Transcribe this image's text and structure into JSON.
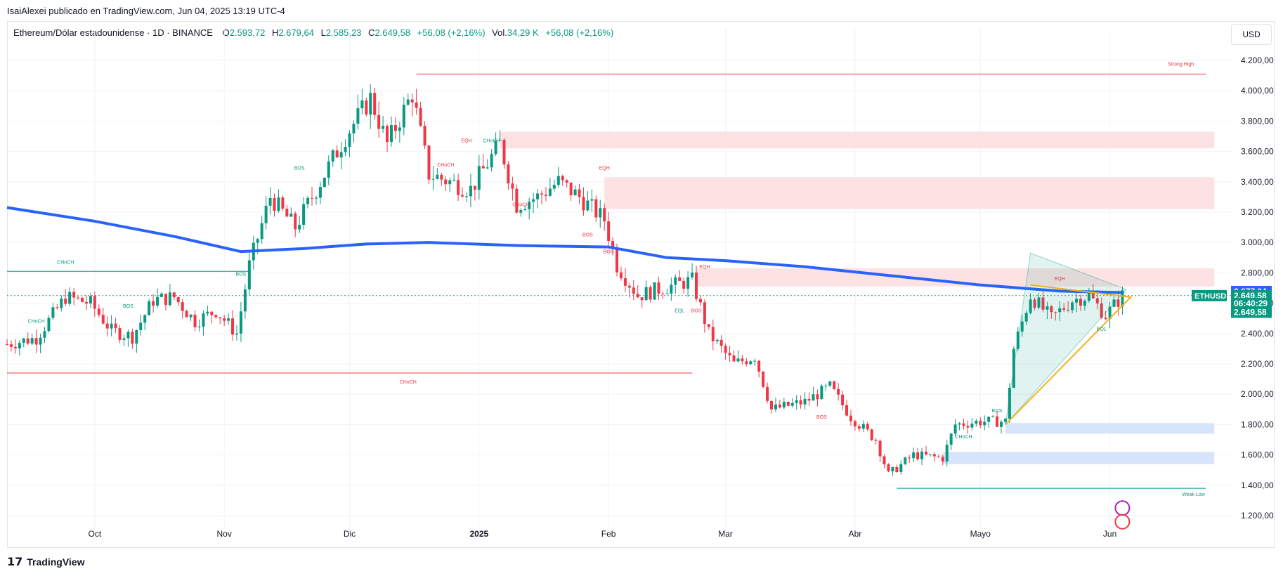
{
  "header": {
    "author_line": "IsaiAlexei publicado en TradingView.com, Jun 04, 2025 13:19 UTC-4"
  },
  "legend": {
    "symbol": "Ethereum/Dólar estadounidense · 1D · BINANCE",
    "open_label": "O",
    "open": "2.593,72",
    "high_label": "H",
    "high": "2.679,64",
    "low_label": "L",
    "low": "2.585,23",
    "close_label": "C",
    "close": "2.649,58",
    "change": "+56,08 (+2,16%)",
    "vol_label": "Vol.",
    "vol": "34,29 K",
    "vol_change": "+56,08 (+2,16%)"
  },
  "currency": "USD",
  "footer": {
    "brand": "TradingView"
  },
  "colors": {
    "up": "#089981",
    "down": "#f23645",
    "ma": "#2962ff",
    "supply_zone": "#fde2e4",
    "demand_zone": "#d6e4fc",
    "grid": "#f0f3fa"
  },
  "chart_data": {
    "type": "candlestick",
    "symbol": "ETHUSD",
    "timeframe": "1D",
    "x_range": [
      "2024-09-10",
      "2025-06-30"
    ],
    "ylim": [
      1080,
      4320
    ],
    "y_ticks": [
      "1.200,00",
      "1.400,00",
      "1.600,00",
      "1.800,00",
      "2.000,00",
      "2.200,00",
      "2.400,00",
      "2.600,00",
      "2.800,00",
      "3.000,00",
      "3.200,00",
      "3.400,00",
      "3.600,00",
      "3.800,00",
      "4.000,00",
      "4.200,00"
    ],
    "y_tick_values": [
      1200,
      1400,
      1600,
      1800,
      2000,
      2200,
      2400,
      2600,
      2800,
      3000,
      3200,
      3400,
      3600,
      3800,
      4000,
      4200
    ],
    "x_ticks": [
      {
        "date": "2024-10-01",
        "label": "Oct"
      },
      {
        "date": "2024-11-01",
        "label": "Nov"
      },
      {
        "date": "2024-12-01",
        "label": "Dic"
      },
      {
        "date": "2025-01-01",
        "label": "2025"
      },
      {
        "date": "2025-02-01",
        "label": "Feb"
      },
      {
        "date": "2025-03-01",
        "label": "Mar"
      },
      {
        "date": "2025-04-01",
        "label": "Abr"
      },
      {
        "date": "2025-05-01",
        "label": "Mayo"
      },
      {
        "date": "2025-06-01",
        "label": "Jun"
      }
    ],
    "close_path": [
      [
        "2024-09-10",
        2330
      ],
      [
        "2024-09-17",
        2370
      ],
      [
        "2024-09-24",
        2640
      ],
      [
        "2024-09-30",
        2600
      ],
      [
        "2024-10-05",
        2420
      ],
      [
        "2024-10-10",
        2380
      ],
      [
        "2024-10-15",
        2620
      ],
      [
        "2024-10-20",
        2640
      ],
      [
        "2024-10-25",
        2480
      ],
      [
        "2024-10-30",
        2550
      ],
      [
        "2024-11-04",
        2400
      ],
      [
        "2024-11-07",
        2850
      ],
      [
        "2024-11-12",
        3300
      ],
      [
        "2024-11-18",
        3100
      ],
      [
        "2024-11-24",
        3400
      ],
      [
        "2024-11-30",
        3700
      ],
      [
        "2024-12-06",
        3950
      ],
      [
        "2024-12-10",
        3650
      ],
      [
        "2024-12-16",
        3980
      ],
      [
        "2024-12-20",
        3450
      ],
      [
        "2024-12-25",
        3400
      ],
      [
        "2024-12-30",
        3350
      ],
      [
        "2025-01-06",
        3650
      ],
      [
        "2025-01-10",
        3250
      ],
      [
        "2025-01-15",
        3300
      ],
      [
        "2025-01-20",
        3400
      ],
      [
        "2025-01-25",
        3300
      ],
      [
        "2025-01-31",
        3150
      ],
      [
        "2025-02-03",
        2850
      ],
      [
        "2025-02-08",
        2650
      ],
      [
        "2025-02-14",
        2700
      ],
      [
        "2025-02-21",
        2750
      ],
      [
        "2025-02-25",
        2400
      ],
      [
        "2025-03-03",
        2200
      ],
      [
        "2025-03-08",
        2250
      ],
      [
        "2025-03-12",
        1900
      ],
      [
        "2025-03-20",
        1950
      ],
      [
        "2025-03-26",
        2050
      ],
      [
        "2025-03-31",
        1850
      ],
      [
        "2025-04-06",
        1700
      ],
      [
        "2025-04-09",
        1470
      ],
      [
        "2025-04-15",
        1600
      ],
      [
        "2025-04-22",
        1580
      ],
      [
        "2025-04-25",
        1800
      ],
      [
        "2025-05-01",
        1820
      ],
      [
        "2025-05-07",
        1820
      ],
      [
        "2025-05-09",
        2300
      ],
      [
        "2025-05-13",
        2650
      ],
      [
        "2025-05-18",
        2500
      ],
      [
        "2025-05-23",
        2620
      ],
      [
        "2025-05-27",
        2650
      ],
      [
        "2025-05-31",
        2520
      ],
      [
        "2025-06-04",
        2650
      ]
    ],
    "moving_average": {
      "color": "#2962ff",
      "points": [
        [
          "2024-09-10",
          3230
        ],
        [
          "2024-10-01",
          3140
        ],
        [
          "2024-10-20",
          3040
        ],
        [
          "2024-11-05",
          2940
        ],
        [
          "2024-11-20",
          2960
        ],
        [
          "2024-12-05",
          2990
        ],
        [
          "2024-12-20",
          3000
        ],
        [
          "2025-01-10",
          2980
        ],
        [
          "2025-02-01",
          2970
        ],
        [
          "2025-02-15",
          2900
        ],
        [
          "2025-03-01",
          2880
        ],
        [
          "2025-03-20",
          2840
        ],
        [
          "2025-04-10",
          2780
        ],
        [
          "2025-05-01",
          2720
        ],
        [
          "2025-05-20",
          2680
        ],
        [
          "2025-06-04",
          2670
        ]
      ]
    },
    "zones": [
      {
        "type": "supply",
        "from": "2025-01-06",
        "to": "2025-06-26",
        "y1": 3620,
        "y2": 3730
      },
      {
        "type": "supply",
        "from": "2025-01-31",
        "to": "2025-06-26",
        "y1": 3220,
        "y2": 3430
      },
      {
        "type": "supply",
        "from": "2025-02-22",
        "to": "2025-06-26",
        "y1": 2710,
        "y2": 2830
      },
      {
        "type": "demand",
        "from": "2025-05-07",
        "to": "2025-06-26",
        "y1": 1740,
        "y2": 1810
      },
      {
        "type": "demand",
        "from": "2025-04-22",
        "to": "2025-06-26",
        "y1": 1540,
        "y2": 1620
      }
    ],
    "horizontal_lines": [
      {
        "from": "2024-12-17",
        "to": "2025-06-24",
        "y": 4110,
        "color": "#f23645"
      },
      {
        "from": "2024-09-10",
        "to": "2024-11-07",
        "y": 2810,
        "color": "#089981"
      },
      {
        "from": "2024-09-10",
        "to": "2025-02-21",
        "y": 2140,
        "color": "#f23645"
      },
      {
        "from": "2025-04-11",
        "to": "2025-06-24",
        "y": 1380,
        "color": "#089981"
      }
    ],
    "annotations": [
      {
        "text": "Strong High",
        "date": "2025-06-18",
        "y": 4165,
        "color": "#f23645"
      },
      {
        "text": "Weak Low",
        "date": "2025-06-21",
        "y": 1330,
        "color": "#089981"
      },
      {
        "text": "CHoCH",
        "date": "2024-09-24",
        "y": 2860,
        "color": "#089981"
      },
      {
        "text": "CHoCH",
        "date": "2024-12-15",
        "y": 2070,
        "color": "#f23645"
      },
      {
        "text": "CHoCH",
        "date": "2024-09-17",
        "y": 2470,
        "color": "#089981"
      },
      {
        "text": "BOS",
        "date": "2024-10-09",
        "y": 2570,
        "color": "#089981"
      },
      {
        "text": "BOS",
        "date": "2024-11-05",
        "y": 2780,
        "color": "#089981"
      },
      {
        "text": "BOS",
        "date": "2024-11-19",
        "y": 3480,
        "color": "#089981"
      },
      {
        "text": "EQH",
        "date": "2024-12-29",
        "y": 3660,
        "color": "#f23645"
      },
      {
        "text": "CHoCH",
        "date": "2025-01-04",
        "y": 3660,
        "color": "#089981"
      },
      {
        "text": "CHoCH",
        "date": "2024-12-24",
        "y": 3500,
        "color": "#f23645"
      },
      {
        "text": "CHoCH",
        "date": "2025-01-11",
        "y": 3240,
        "color": "#f23645"
      },
      {
        "text": "EQH",
        "date": "2025-01-31",
        "y": 3480,
        "color": "#f23645"
      },
      {
        "text": "BOS",
        "date": "2025-01-27",
        "y": 3040,
        "color": "#f23645"
      },
      {
        "text": "BOS",
        "date": "2025-02-01",
        "y": 2930,
        "color": "#f23645"
      },
      {
        "text": "EQH",
        "date": "2025-02-24",
        "y": 2830,
        "color": "#f23645"
      },
      {
        "text": "EQL",
        "date": "2025-02-18",
        "y": 2540,
        "color": "#089981"
      },
      {
        "text": "BOS",
        "date": "2025-02-22",
        "y": 2540,
        "color": "#f23645"
      },
      {
        "text": "BOS",
        "date": "2025-03-24",
        "y": 1840,
        "color": "#f23645"
      },
      {
        "text": "CHoCH",
        "date": "2025-04-27",
        "y": 1710,
        "color": "#089981"
      },
      {
        "text": "BOS",
        "date": "2025-05-05",
        "y": 1880,
        "color": "#089981"
      },
      {
        "text": "EQH",
        "date": "2025-05-20",
        "y": 2750,
        "color": "#f23645"
      },
      {
        "text": "EQL",
        "date": "2025-05-30",
        "y": 2420,
        "color": "#089981"
      }
    ],
    "price_labels": [
      {
        "text": "2.677,04",
        "y": 2677,
        "color": "#2962ff"
      },
      {
        "text": "2.649,58",
        "y": 2649.58,
        "color": "#089981"
      },
      {
        "text": "06:40:29",
        "y": 2598,
        "color": "#089981"
      },
      {
        "text": "2.649,58",
        "y": 2540,
        "color": "#089981"
      }
    ],
    "symbol_tag": "ETHUSD"
  }
}
